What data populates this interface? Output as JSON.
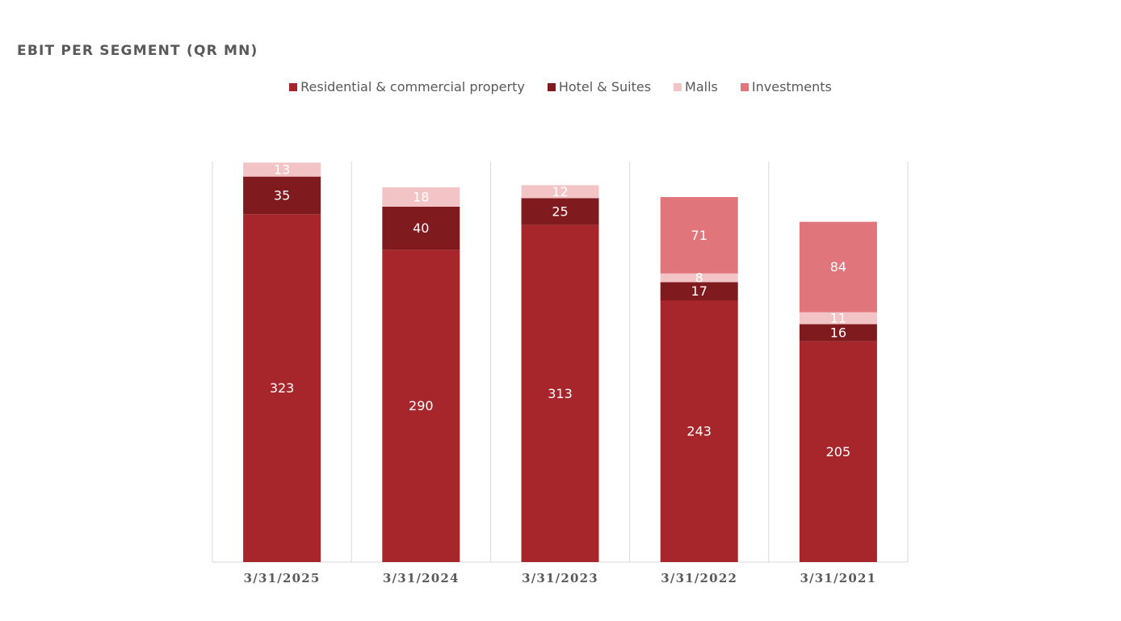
{
  "chart_data": {
    "type": "bar",
    "stacked": true,
    "title": "EBIT PER SEGMENT (QR MN)",
    "legend_position": "top-center",
    "categories": [
      "3/31/2025",
      "3/31/2024",
      "3/31/2023",
      "3/31/2022",
      "3/31/2021"
    ],
    "series": [
      {
        "name": "Residential & commercial property",
        "color": "#a6262b",
        "values": [
          323,
          290,
          313,
          243,
          205
        ]
      },
      {
        "name": "Hotel & Suites",
        "color": "#7f1a1f",
        "values": [
          35,
          40,
          25,
          17,
          16
        ]
      },
      {
        "name": "Malls",
        "color": "#f3c4c6",
        "values": [
          13,
          18,
          12,
          8,
          11
        ]
      },
      {
        "name": "Investments",
        "color": "#e0767b",
        "values": [
          null,
          null,
          null,
          71,
          84
        ]
      }
    ],
    "ylim": [
      0,
      372
    ],
    "grid": false
  }
}
